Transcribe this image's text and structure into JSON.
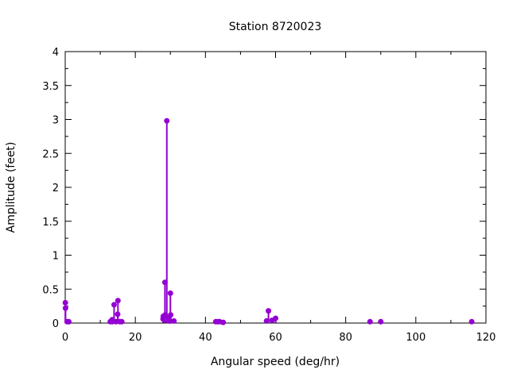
{
  "chart_data": {
    "type": "stem",
    "title": "Station 8720023",
    "xlabel": "Angular speed (deg/hr)",
    "ylabel": "Amplitude (feet)",
    "xlim": [
      0,
      120
    ],
    "ylim": [
      0,
      4
    ],
    "xticks": [
      0,
      20,
      40,
      60,
      80,
      100,
      120
    ],
    "xtick_labels": [
      "0",
      "20",
      "40",
      "60",
      "80",
      "100",
      "120"
    ],
    "yticks": [
      0,
      0.5,
      1,
      1.5,
      2,
      2.5,
      3,
      3.5,
      4
    ],
    "ytick_labels": [
      "0",
      "0.5",
      "1",
      "1.5",
      "2",
      "2.5",
      "3",
      "3.5",
      "4"
    ],
    "minor_xtick_step": 10,
    "minor_ytick_step": 0.25,
    "grid": false,
    "legend": "none",
    "marker_color": "#9400D3",
    "axis_color": "#000000",
    "points": [
      {
        "x": 0.04,
        "y": 0.3
      },
      {
        "x": 0.08,
        "y": 0.22
      },
      {
        "x": 0.54,
        "y": 0.02
      },
      {
        "x": 1.02,
        "y": 0.02
      },
      {
        "x": 12.85,
        "y": 0.02
      },
      {
        "x": 13.4,
        "y": 0.05
      },
      {
        "x": 13.47,
        "y": 0.02
      },
      {
        "x": 13.94,
        "y": 0.27
      },
      {
        "x": 14.5,
        "y": 0.02
      },
      {
        "x": 14.96,
        "y": 0.13
      },
      {
        "x": 15.04,
        "y": 0.33
      },
      {
        "x": 15.59,
        "y": 0.02
      },
      {
        "x": 16.14,
        "y": 0.02
      },
      {
        "x": 27.9,
        "y": 0.06
      },
      {
        "x": 27.97,
        "y": 0.1
      },
      {
        "x": 28.44,
        "y": 0.6
      },
      {
        "x": 28.51,
        "y": 0.12
      },
      {
        "x": 28.98,
        "y": 2.98
      },
      {
        "x": 29.46,
        "y": 0.03
      },
      {
        "x": 29.53,
        "y": 0.08
      },
      {
        "x": 29.96,
        "y": 0.03
      },
      {
        "x": 30.0,
        "y": 0.44
      },
      {
        "x": 30.08,
        "y": 0.12
      },
      {
        "x": 31.02,
        "y": 0.03
      },
      {
        "x": 42.93,
        "y": 0.02
      },
      {
        "x": 43.48,
        "y": 0.02
      },
      {
        "x": 44.03,
        "y": 0.02
      },
      {
        "x": 45.04,
        "y": 0.01
      },
      {
        "x": 57.42,
        "y": 0.03
      },
      {
        "x": 57.97,
        "y": 0.18
      },
      {
        "x": 58.98,
        "y": 0.04
      },
      {
        "x": 60.0,
        "y": 0.07
      },
      {
        "x": 86.95,
        "y": 0.02
      },
      {
        "x": 90.0,
        "y": 0.02
      },
      {
        "x": 115.94,
        "y": 0.02
      }
    ]
  }
}
